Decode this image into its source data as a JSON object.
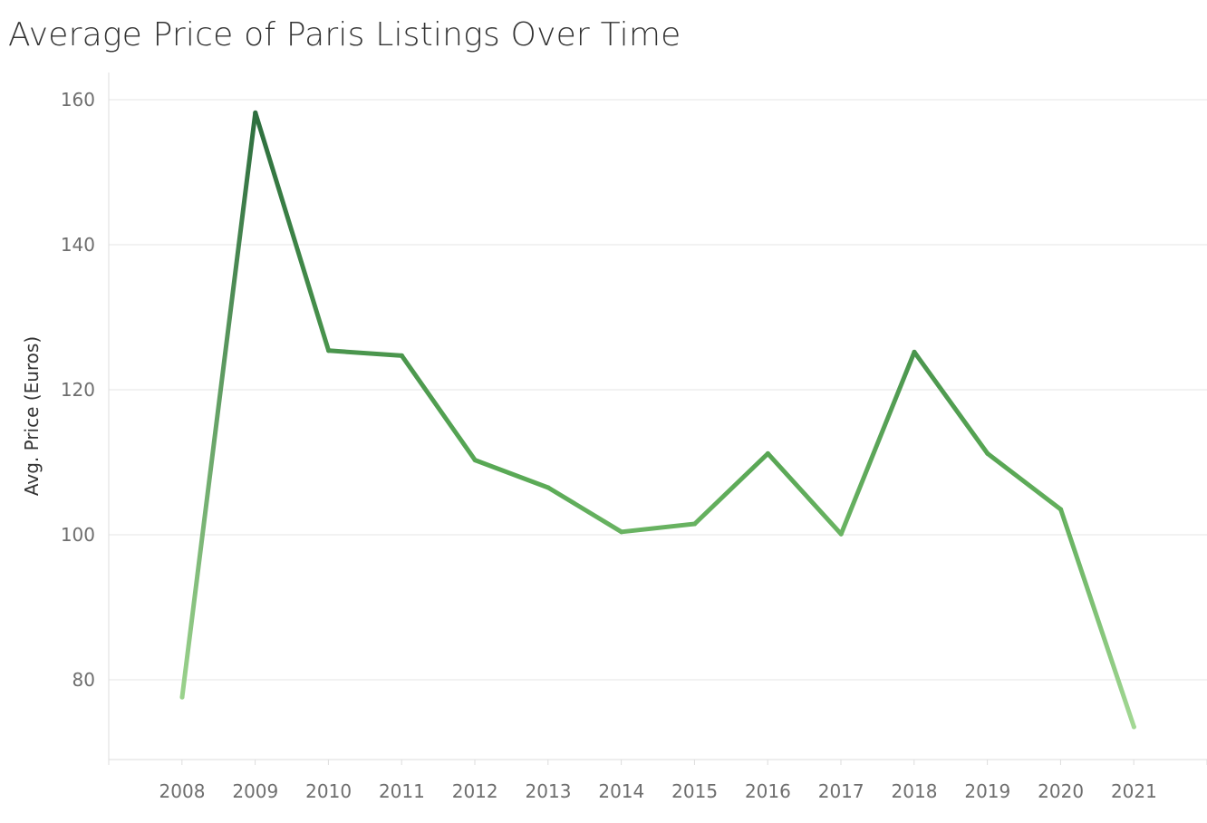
{
  "chart_data": {
    "type": "line",
    "title": "Average Price of Paris Listings Over Time",
    "xlabel": "",
    "ylabel": "Avg. Price (Euros)",
    "x": [
      "2008",
      "2009",
      "2010",
      "2011",
      "2012",
      "2013",
      "2014",
      "2015",
      "2016",
      "2017",
      "2018",
      "2019",
      "2020",
      "2021"
    ],
    "series": [
      {
        "values": [
          77.6,
          158.2,
          125.4,
          124.7,
          110.3,
          106.5,
          100.4,
          101.5,
          111.2,
          100.1,
          125.2,
          111.2,
          103.5,
          73.5
        ]
      }
    ],
    "yticks": [
      "80",
      "100",
      "120",
      "140",
      "160"
    ],
    "ylim": [
      69,
      162
    ],
    "grid": true,
    "legend": "none",
    "colors": {
      "line_light": "#a3d894",
      "line_mid": "#5aaa55",
      "line_dark": "#2d6e3e",
      "gridline": "#ebebeb",
      "axis": "#dddddd"
    }
  }
}
